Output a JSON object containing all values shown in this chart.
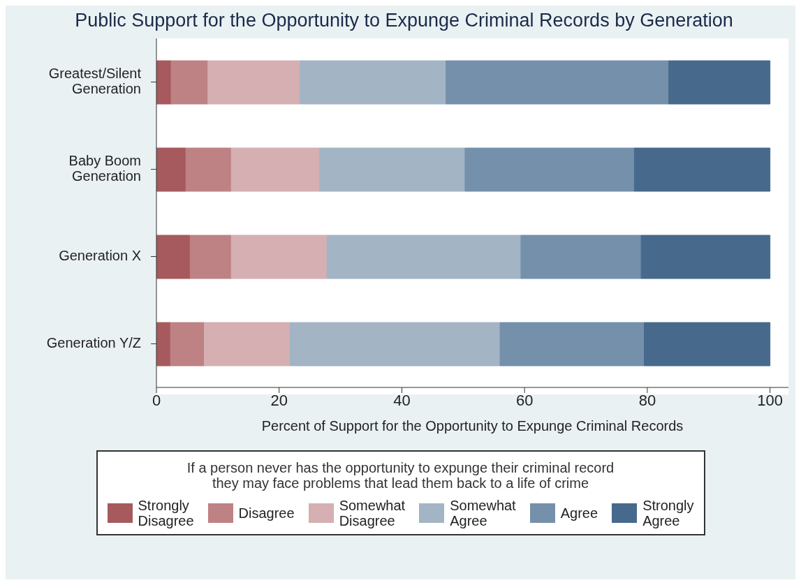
{
  "chart_data": {
    "type": "bar",
    "orientation": "horizontal",
    "stacked": true,
    "title": "Public Support for the Opportunity to Expunge Criminal Records by Generation",
    "xlabel": "Percent of Support for the Opportunity to Expunge Criminal Records",
    "legend_title": "If a person never has the opportunity to expunge their criminal record\nthey may face problems that lead them back to a life of crime",
    "categories": [
      "Greatest/Silent\nGeneration",
      "Baby Boom\nGeneration",
      "Generation X",
      "Generation Y/Z"
    ],
    "series": [
      {
        "name": "Strongly\nDisagree",
        "color": "#a65a5e",
        "values": [
          2.4,
          4.8,
          5.5,
          2.3
        ]
      },
      {
        "name": "Disagree",
        "color": "#be8284",
        "values": [
          6.0,
          7.4,
          6.7,
          5.5
        ]
      },
      {
        "name": "Somewhat\nDisagree",
        "color": "#d5afb1",
        "values": [
          15.0,
          14.4,
          15.6,
          14.0
        ]
      },
      {
        "name": "Somewhat\nAgree",
        "color": "#a3b4c5",
        "values": [
          23.8,
          23.7,
          31.6,
          34.2
        ]
      },
      {
        "name": "Agree",
        "color": "#7590ab",
        "values": [
          36.3,
          27.6,
          19.6,
          23.5
        ]
      },
      {
        "name": "Strongly\nAgree",
        "color": "#476a8c",
        "values": [
          16.5,
          22.1,
          21.0,
          20.5
        ]
      }
    ],
    "xlim": [
      0,
      103
    ],
    "xticks": [
      0,
      20,
      40,
      60,
      80,
      100
    ],
    "grid": false,
    "legend": "bottom"
  }
}
